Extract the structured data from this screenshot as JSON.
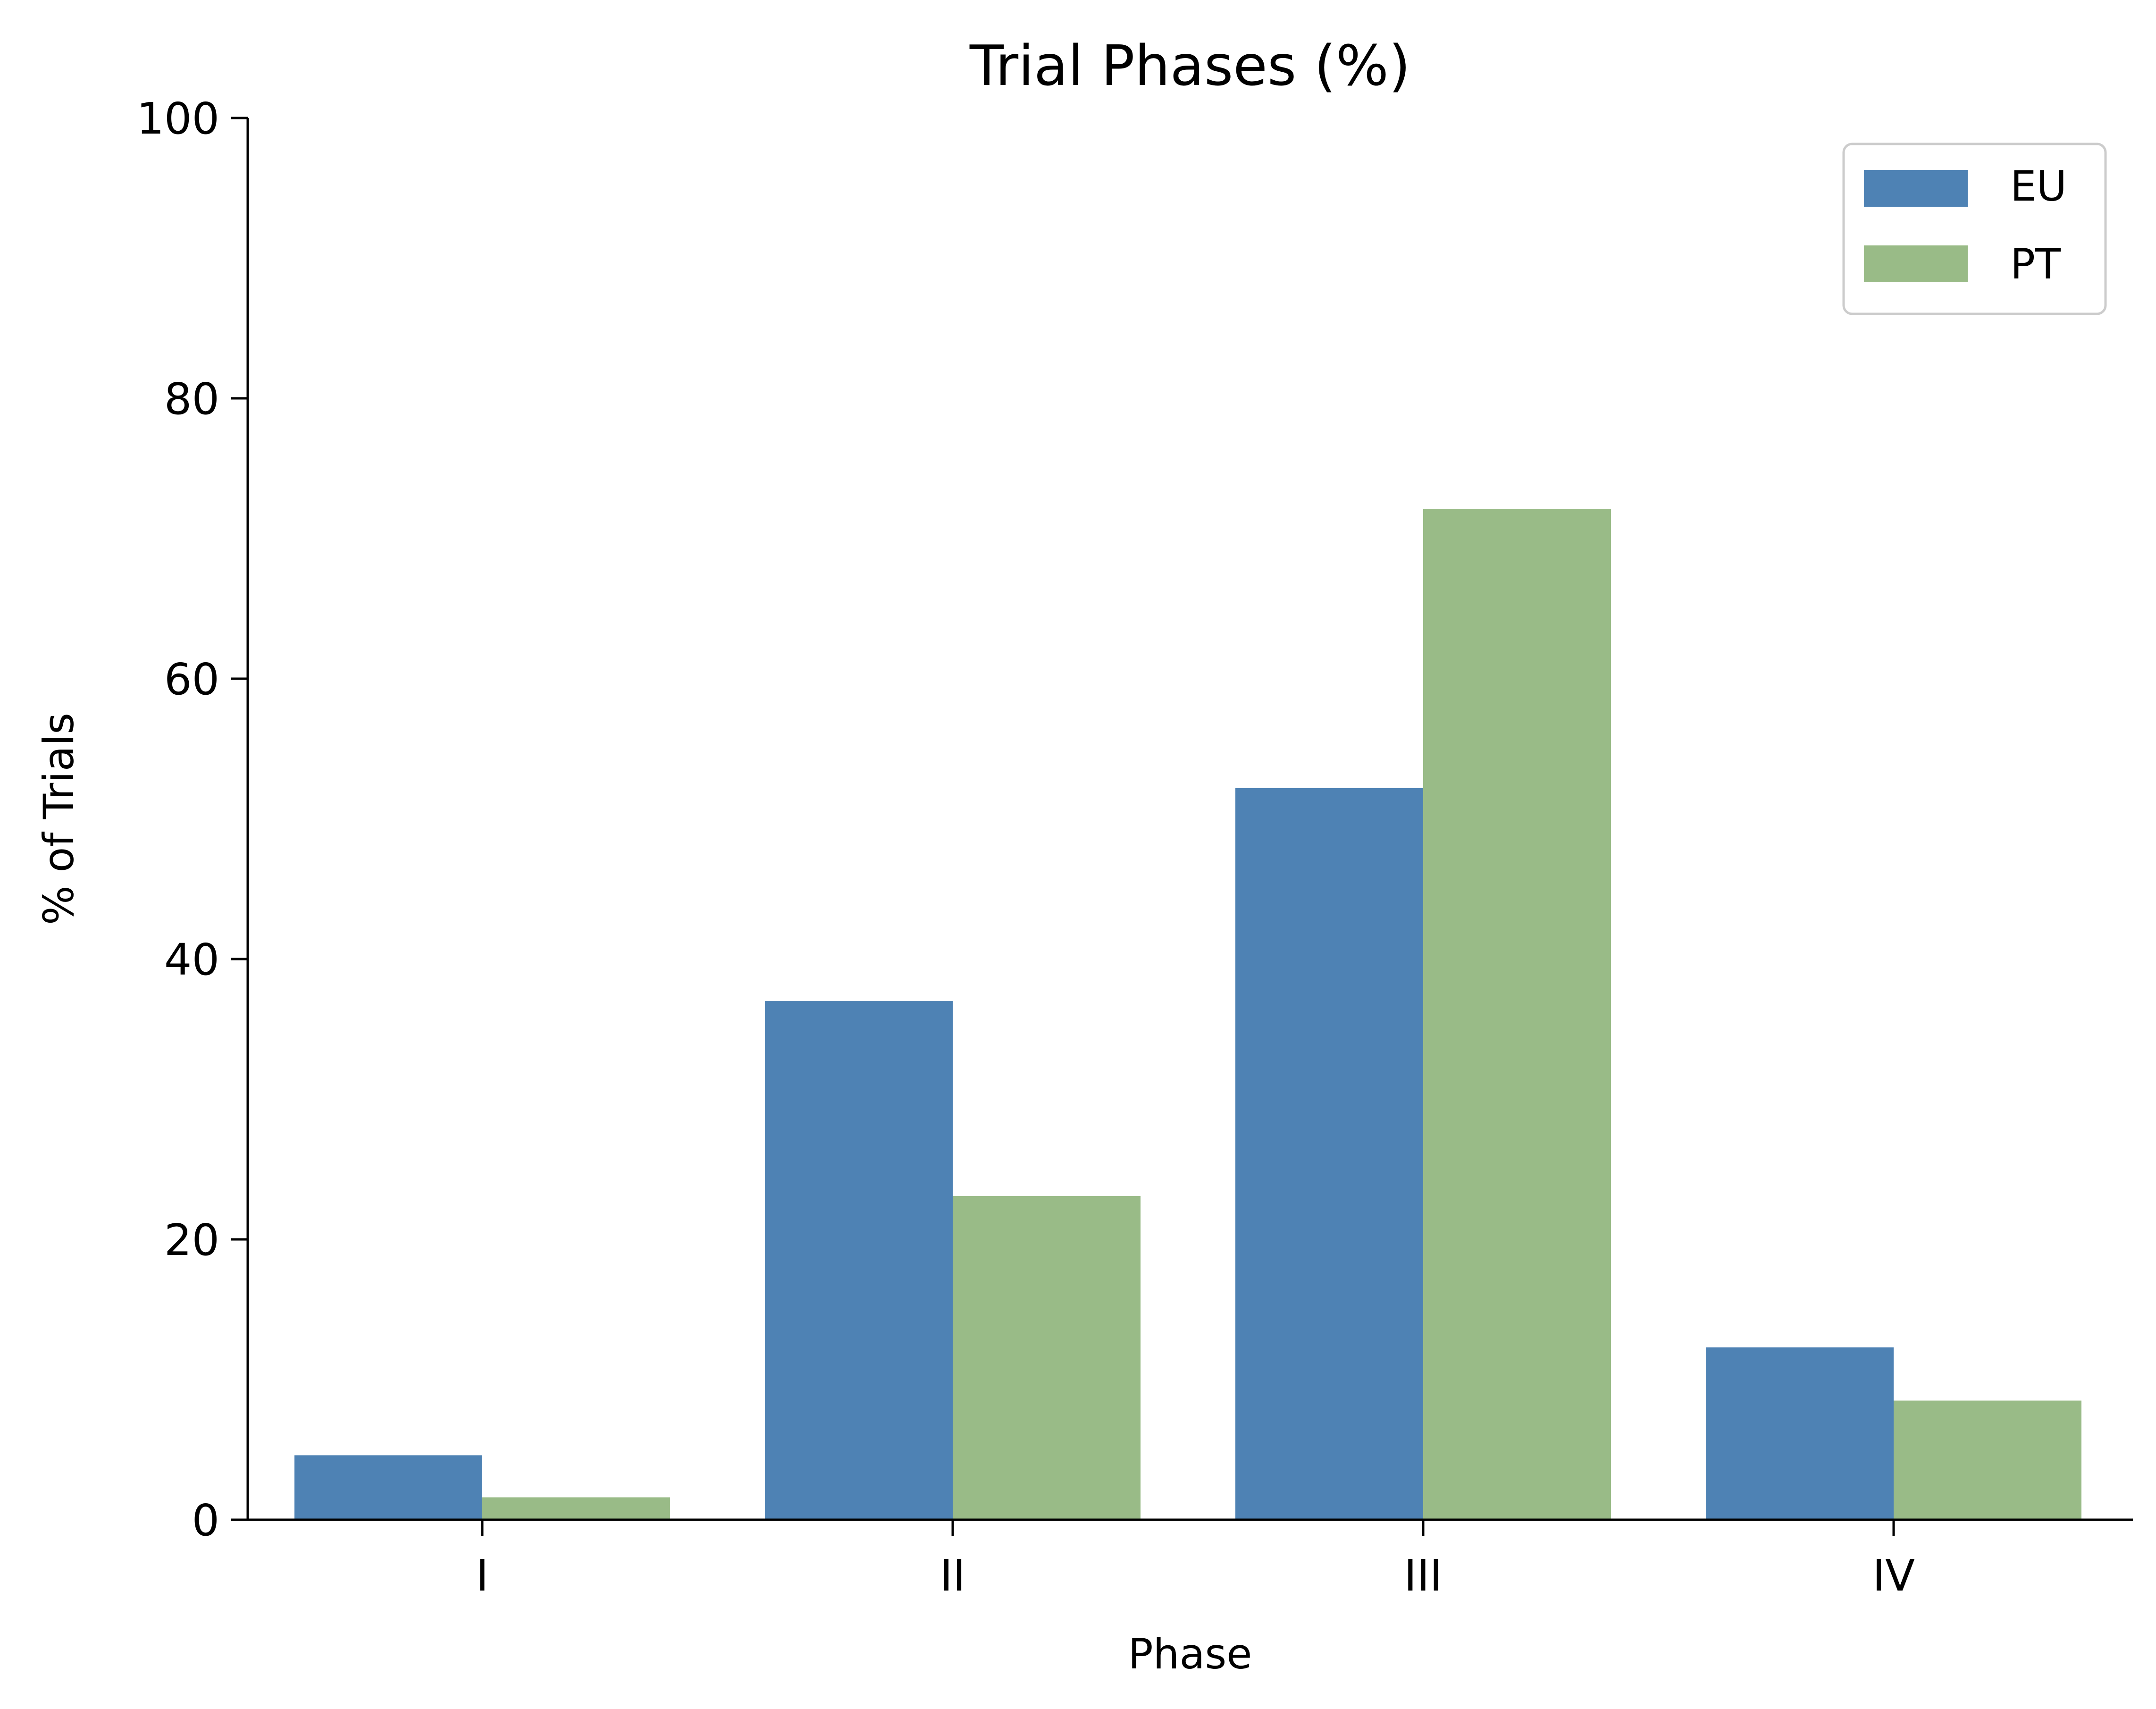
{
  "chart_data": {
    "type": "bar",
    "title": "Trial Phases (%)",
    "xlabel": "Phase",
    "ylabel": "% of Trials",
    "categories": [
      "I",
      "II",
      "III",
      "IV"
    ],
    "series": [
      {
        "name": "EU",
        "color": "#4e82b4",
        "values": [
          4.6,
          37.0,
          52.2,
          12.3
        ]
      },
      {
        "name": "PT",
        "color": "#99bb87",
        "values": [
          1.6,
          23.1,
          72.1,
          8.5
        ]
      }
    ],
    "ylim": [
      0,
      100
    ],
    "yticks": [
      0,
      20,
      40,
      60,
      80,
      100
    ],
    "grid": false,
    "legend_position": "top-right"
  }
}
